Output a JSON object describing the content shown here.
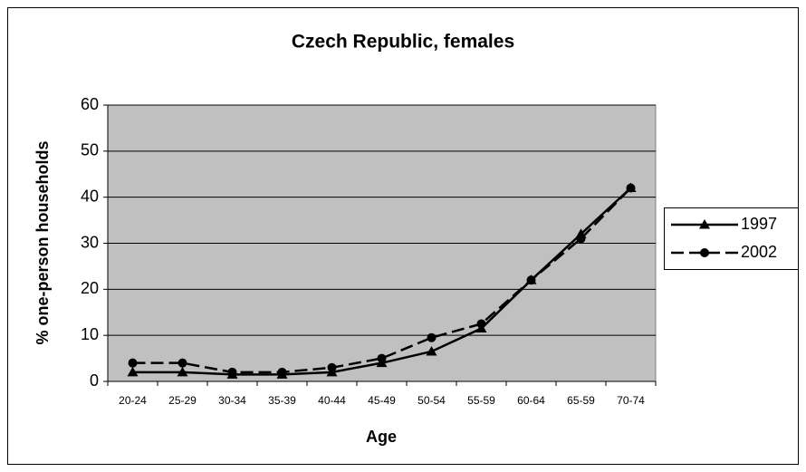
{
  "chart_data": {
    "type": "line",
    "title": "Czech Republic, females",
    "xlabel": "Age",
    "ylabel": "% one-person households",
    "categories": [
      "20-24",
      "25-29",
      "30-34",
      "35-39",
      "40-44",
      "45-49",
      "50-54",
      "55-59",
      "60-64",
      "65-59",
      "70-74"
    ],
    "series": [
      {
        "name": "1997",
        "color": "#000000",
        "dash": "solid",
        "marker": "triangle",
        "values": [
          2,
          2,
          1.5,
          1.5,
          2,
          4,
          6.5,
          11.5,
          22,
          32,
          42
        ]
      },
      {
        "name": "2002",
        "color": "#000000",
        "dash": "dashed",
        "marker": "circle",
        "values": [
          4,
          4,
          2,
          2,
          3,
          5,
          9.5,
          12.5,
          22,
          31,
          42
        ]
      }
    ],
    "ylim": [
      0,
      60
    ],
    "yticks": [
      0,
      10,
      20,
      30,
      40,
      50,
      60
    ],
    "grid": true,
    "plot_background": "#c0c0c0",
    "legend": "right"
  }
}
